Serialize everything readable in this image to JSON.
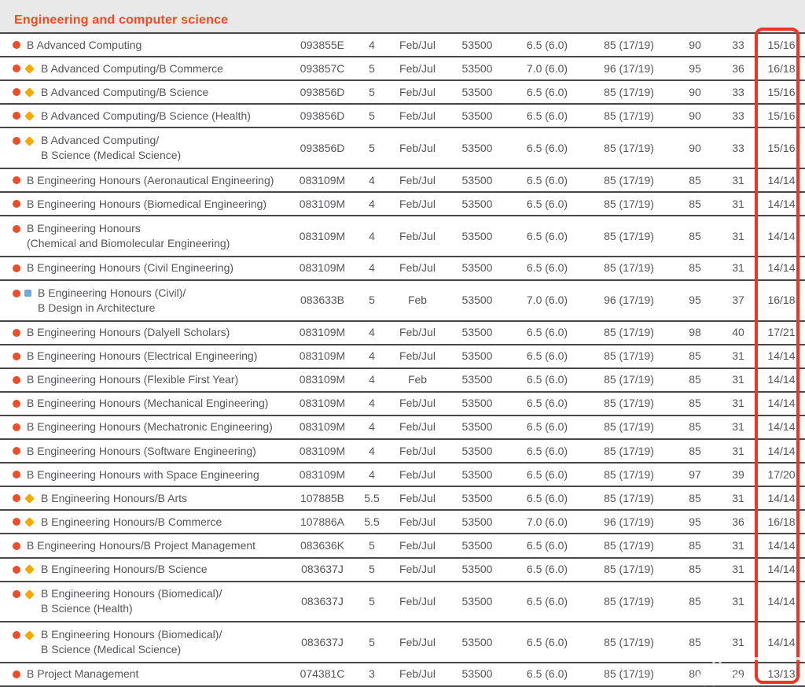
{
  "section": {
    "title": "Engineering and computer science"
  },
  "colors": {
    "title": "#f04b24",
    "highlight_box": "#ee3424",
    "marker_circle": "#e8502d",
    "marker_diamond": "#f2a900",
    "marker_square": "#6fa8dc",
    "row_text": "#55565a",
    "row_border": "#47484a",
    "band_background": "#e9e9e9"
  },
  "table": {
    "rows": [
      {
        "markers": [
          "circle"
        ],
        "name": "B Advanced Computing",
        "name2": "",
        "code": "093855E",
        "duration": "4",
        "intake": "Feb/Jul",
        "fee": "53500",
        "ielts": "6.5 (6.0)",
        "toefl": "85 (17/19)",
        "atar": "90",
        "ib": "33",
        "rank": "15/16"
      },
      {
        "markers": [
          "circle",
          "diamond"
        ],
        "name": "B Advanced Computing/B Commerce",
        "name2": "",
        "code": "093857C",
        "duration": "5",
        "intake": "Feb/Jul",
        "fee": "53500",
        "ielts": "7.0 (6.0)",
        "toefl": "96 (17/19)",
        "atar": "95",
        "ib": "36",
        "rank": "16/18"
      },
      {
        "markers": [
          "circle",
          "diamond"
        ],
        "name": "B Advanced Computing/B Science",
        "name2": "",
        "code": "093856D",
        "duration": "5",
        "intake": "Feb/Jul",
        "fee": "53500",
        "ielts": "6.5 (6.0)",
        "toefl": "85 (17/19)",
        "atar": "90",
        "ib": "33",
        "rank": "15/16"
      },
      {
        "markers": [
          "circle",
          "diamond"
        ],
        "name": "B Advanced Computing/B Science (Health)",
        "name2": "",
        "code": "093856D",
        "duration": "5",
        "intake": "Feb/Jul",
        "fee": "53500",
        "ielts": "6.5 (6.0)",
        "toefl": "85 (17/19)",
        "atar": "90",
        "ib": "33",
        "rank": "15/16"
      },
      {
        "markers": [
          "circle",
          "diamond"
        ],
        "name": "B Advanced Computing/",
        "name2": "B Science (Medical Science)",
        "code": "093856D",
        "duration": "5",
        "intake": "Feb/Jul",
        "fee": "53500",
        "ielts": "6.5 (6.0)",
        "toefl": "85 (17/19)",
        "atar": "90",
        "ib": "33",
        "rank": "15/16"
      },
      {
        "markers": [
          "circle"
        ],
        "name": "B Engineering Honours (Aeronautical Engineering)",
        "name2": "",
        "code": "083109M",
        "duration": "4",
        "intake": "Feb/Jul",
        "fee": "53500",
        "ielts": "6.5 (6.0)",
        "toefl": "85 (17/19)",
        "atar": "85",
        "ib": "31",
        "rank": "14/14"
      },
      {
        "markers": [
          "circle"
        ],
        "name": "B Engineering Honours (Biomedical Engineering)",
        "name2": "",
        "code": "083109M",
        "duration": "4",
        "intake": "Feb/Jul",
        "fee": "53500",
        "ielts": "6.5 (6.0)",
        "toefl": "85 (17/19)",
        "atar": "85",
        "ib": "31",
        "rank": "14/14"
      },
      {
        "markers": [
          "circle"
        ],
        "name": "B Engineering Honours",
        "name2": "(Chemical and Biomolecular Engineering)",
        "code": "083109M",
        "duration": "4",
        "intake": "Feb/Jul",
        "fee": "53500",
        "ielts": "6.5 (6.0)",
        "toefl": "85 (17/19)",
        "atar": "85",
        "ib": "31",
        "rank": "14/14"
      },
      {
        "markers": [
          "circle"
        ],
        "name": "B Engineering Honours (Civil Engineering)",
        "name2": "",
        "code": "083109M",
        "duration": "4",
        "intake": "Feb/Jul",
        "fee": "53500",
        "ielts": "6.5 (6.0)",
        "toefl": "85 (17/19)",
        "atar": "85",
        "ib": "31",
        "rank": "14/14"
      },
      {
        "markers": [
          "circle",
          "square"
        ],
        "name": "B Engineering Honours (Civil)/",
        "name2": "B Design in Architecture",
        "code": "083633B",
        "duration": "5",
        "intake": "Feb",
        "fee": "53500",
        "ielts": "7.0 (6.0)",
        "toefl": "96 (17/19)",
        "atar": "95",
        "ib": "37",
        "rank": "16/18"
      },
      {
        "markers": [
          "circle"
        ],
        "name": "B Engineering Honours (Dalyell Scholars)",
        "name2": "",
        "code": "083109M",
        "duration": "4",
        "intake": "Feb/Jul",
        "fee": "53500",
        "ielts": "6.5 (6.0)",
        "toefl": "85 (17/19)",
        "atar": "98",
        "ib": "40",
        "rank": "17/21"
      },
      {
        "markers": [
          "circle"
        ],
        "name": "B Engineering Honours (Electrical Engineering)",
        "name2": "",
        "code": "083109M",
        "duration": "4",
        "intake": "Feb/Jul",
        "fee": "53500",
        "ielts": "6.5 (6.0)",
        "toefl": "85 (17/19)",
        "atar": "85",
        "ib": "31",
        "rank": "14/14"
      },
      {
        "markers": [
          "circle"
        ],
        "name": "B Engineering Honours (Flexible First Year)",
        "name2": "",
        "code": "083109M",
        "duration": "4",
        "intake": "Feb",
        "fee": "53500",
        "ielts": "6.5 (6.0)",
        "toefl": "85 (17/19)",
        "atar": "85",
        "ib": "31",
        "rank": "14/14"
      },
      {
        "markers": [
          "circle"
        ],
        "name": "B Engineering Honours (Mechanical Engineering)",
        "name2": "",
        "code": "083109M",
        "duration": "4",
        "intake": "Feb/Jul",
        "fee": "53500",
        "ielts": "6.5 (6.0)",
        "toefl": "85 (17/19)",
        "atar": "85",
        "ib": "31",
        "rank": "14/14"
      },
      {
        "markers": [
          "circle"
        ],
        "name": "B Engineering Honours (Mechatronic Engineering)",
        "name2": "",
        "code": "083109M",
        "duration": "4",
        "intake": "Feb/Jul",
        "fee": "53500",
        "ielts": "6.5 (6.0)",
        "toefl": "85 (17/19)",
        "atar": "85",
        "ib": "31",
        "rank": "14/14"
      },
      {
        "markers": [
          "circle"
        ],
        "name": "B Engineering Honours (Software Engineering)",
        "name2": "",
        "code": "083109M",
        "duration": "4",
        "intake": "Feb/Jul",
        "fee": "53500",
        "ielts": "6.5 (6.0)",
        "toefl": "85 (17/19)",
        "atar": "85",
        "ib": "31",
        "rank": "14/14"
      },
      {
        "markers": [
          "circle"
        ],
        "name": "B Engineering Honours with Space Engineering",
        "name2": "",
        "code": "083109M",
        "duration": "4",
        "intake": "Feb/Jul",
        "fee": "53500",
        "ielts": "6.5 (6.0)",
        "toefl": "85 (17/19)",
        "atar": "97",
        "ib": "39",
        "rank": "17/20"
      },
      {
        "markers": [
          "circle",
          "diamond"
        ],
        "name": "B Engineering Honours/B Arts",
        "name2": "",
        "code": "107885B",
        "duration": "5.5",
        "intake": "Feb/Jul",
        "fee": "53500",
        "ielts": "6.5 (6.0)",
        "toefl": "85 (17/19)",
        "atar": "85",
        "ib": "31",
        "rank": "14/14"
      },
      {
        "markers": [
          "circle",
          "diamond"
        ],
        "name": "B Engineering Honours/B Commerce",
        "name2": "",
        "code": "107886A",
        "duration": "5.5",
        "intake": "Feb/Jul",
        "fee": "53500",
        "ielts": "7.0 (6.0)",
        "toefl": "96 (17/19)",
        "atar": "95",
        "ib": "36",
        "rank": "16/18"
      },
      {
        "markers": [
          "circle"
        ],
        "name": "B Engineering Honours/B Project Management",
        "name2": "",
        "code": "083636K",
        "duration": "5",
        "intake": "Feb/Jul",
        "fee": "53500",
        "ielts": "6.5 (6.0)",
        "toefl": "85 (17/19)",
        "atar": "85",
        "ib": "31",
        "rank": "14/14"
      },
      {
        "markers": [
          "circle",
          "diamond"
        ],
        "name": "B Engineering Honours/B Science",
        "name2": "",
        "code": "083637J",
        "duration": "5",
        "intake": "Feb/Jul",
        "fee": "53500",
        "ielts": "6.5 (6.0)",
        "toefl": "85 (17/19)",
        "atar": "85",
        "ib": "31",
        "rank": "14/14"
      },
      {
        "markers": [
          "circle",
          "diamond"
        ],
        "name": "B Engineering Honours (Biomedical)/",
        "name2": "B Science (Health)",
        "code": "083637J",
        "duration": "5",
        "intake": "Feb/Jul",
        "fee": "53500",
        "ielts": "6.5 (6.0)",
        "toefl": "85 (17/19)",
        "atar": "85",
        "ib": "31",
        "rank": "14/14"
      },
      {
        "markers": [
          "circle",
          "diamond"
        ],
        "name": "B Engineering Honours (Biomedical)/",
        "name2": "B Science (Medical Science)",
        "code": "083637J",
        "duration": "5",
        "intake": "Feb/Jul",
        "fee": "53500",
        "ielts": "6.5 (6.0)",
        "toefl": "85 (17/19)",
        "atar": "85",
        "ib": "31",
        "rank": "14/14"
      },
      {
        "markers": [
          "circle"
        ],
        "name": "B Project Management",
        "name2": "",
        "code": "074381C",
        "duration": "3",
        "intake": "Feb/Jul",
        "fee": "53500",
        "ielts": "6.5 (6.0)",
        "toefl": "85 (17/19)",
        "atar": "80",
        "ib": "29",
        "rank": "13/13"
      }
    ]
  },
  "annotations": {
    "highlight_box": "red rounded rectangle around last column",
    "watermark": "semi-transparent white logo watermark, bottom-right corner"
  }
}
